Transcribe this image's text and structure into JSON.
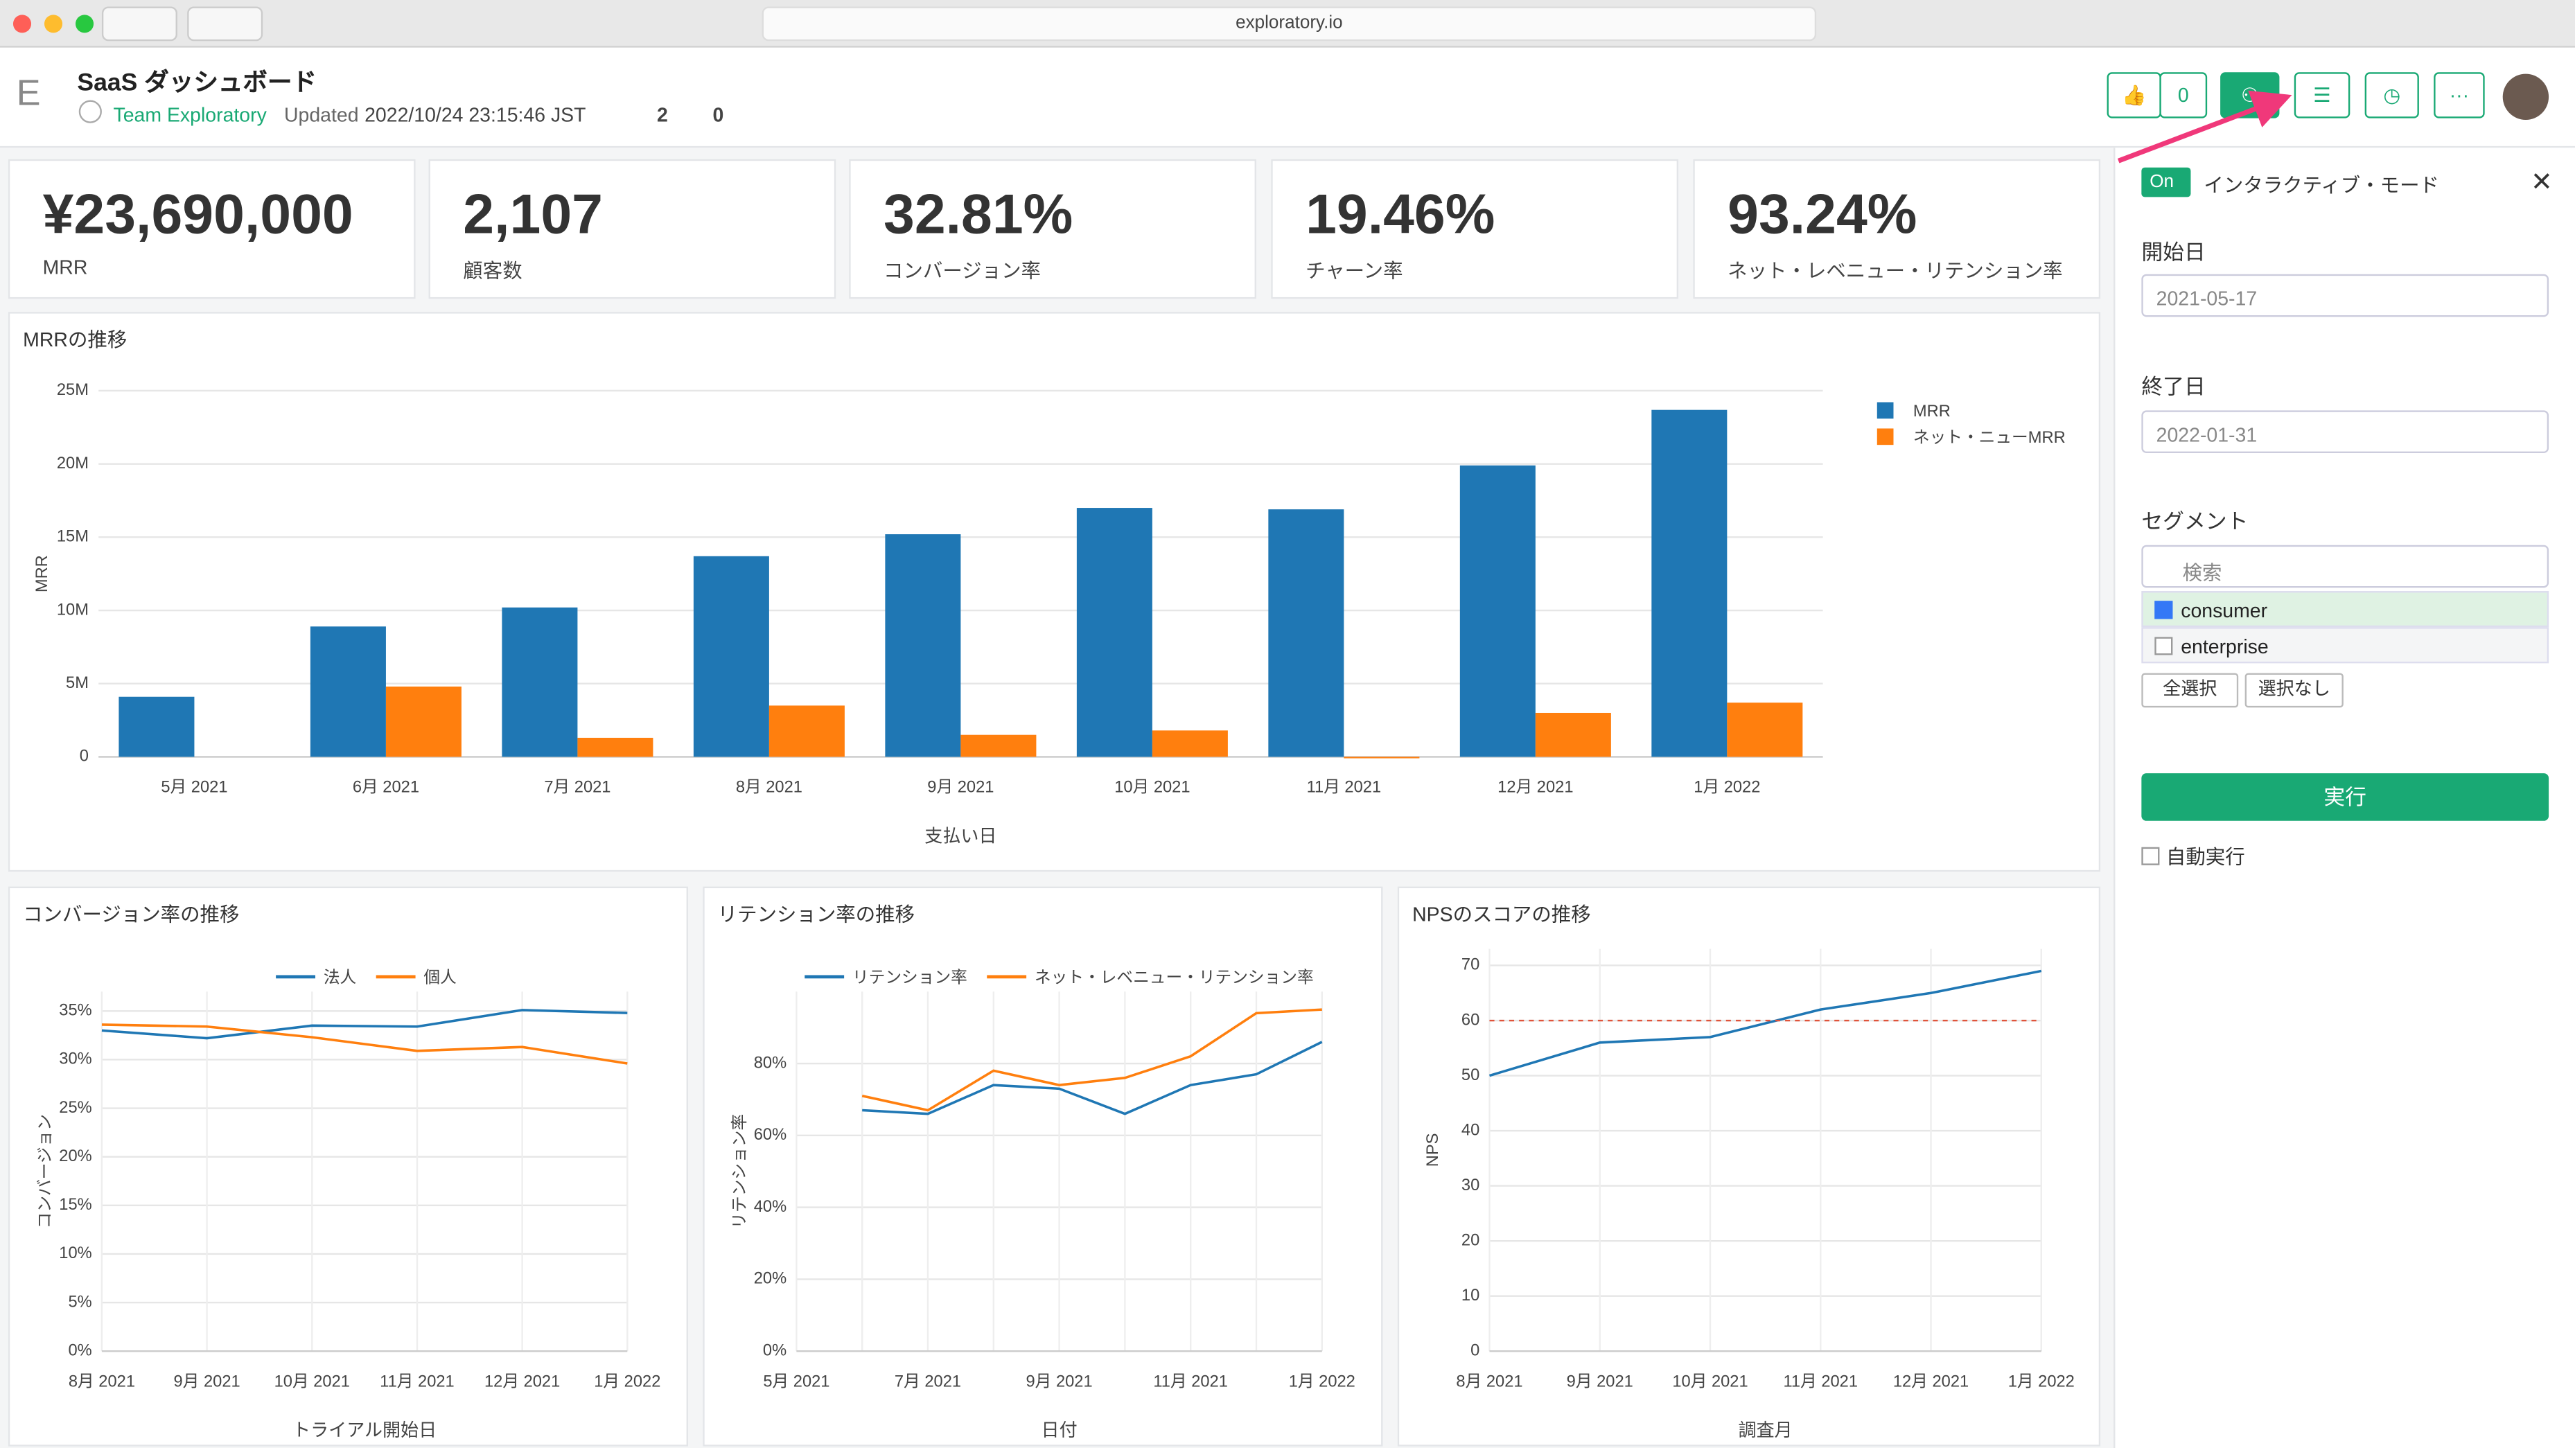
{
  "browser": {
    "url": "exploratory.io"
  },
  "header": {
    "logo": "E",
    "title": "SaaS ダッシュボード",
    "team": "Team Exploratory",
    "updated_label": "Updated",
    "updated": "2022/10/24 23:15:46 JST",
    "views": 2,
    "downloads": 0,
    "likes": 0
  },
  "kpis": [
    {
      "value": "¥23,690,000",
      "label": "MRR"
    },
    {
      "value": "2,107",
      "label": "顧客数"
    },
    {
      "value": "32.81%",
      "label": "コンバージョン率"
    },
    {
      "value": "19.46%",
      "label": "チャーン率"
    },
    {
      "value": "93.24%",
      "label": "ネット・レベニュー・リテンション率"
    }
  ],
  "panel": {
    "toggle": "On",
    "mode": "インタラクティブ・モード",
    "start_label": "開始日",
    "start": "2021-05-17",
    "end_label": "終了日",
    "end": "2022-01-31",
    "segment_label": "セグメント",
    "search": "検索",
    "options": [
      {
        "label": "consumer",
        "checked": true
      },
      {
        "label": "enterprise",
        "checked": false
      }
    ],
    "select_all": "全選択",
    "select_none": "選択なし",
    "run": "実行",
    "auto_run": "自動実行"
  },
  "chart_data": [
    {
      "type": "bar",
      "title": "MRRの推移",
      "xlabel": "支払い日",
      "ylabel": "MRR",
      "categories": [
        "5月 2021",
        "6月 2021",
        "7月 2021",
        "8月 2021",
        "9月 2021",
        "10月 2021",
        "11月 2021",
        "12月 2021",
        "1月 2022"
      ],
      "series": [
        {
          "name": "MRR",
          "color": "#1f77b4",
          "values": [
            4100000,
            8900000,
            10200000,
            13700000,
            15200000,
            17000000,
            16900000,
            19900000,
            23690000
          ]
        },
        {
          "name": "ネット・ニューMRR",
          "color": "#ff7f0e",
          "values": [
            null,
            4800000,
            1300000,
            3500000,
            1500000,
            1800000,
            -100000,
            3000000,
            3700000
          ]
        }
      ],
      "ylim": [
        0,
        25000000
      ],
      "yticks": [
        0,
        {
          "value": 5000000,
          "label": "5M"
        },
        {
          "value": 10000000,
          "label": "10M"
        },
        {
          "value": 15000000,
          "label": "15M"
        },
        {
          "value": 20000000,
          "label": "20M"
        },
        {
          "value": 25000000,
          "label": "25M"
        }
      ],
      "grid": true,
      "legend": "right"
    },
    {
      "type": "line",
      "title": "コンバージョン率の推移",
      "xlabel": "トライアル開始日",
      "ylabel": "コンバージョン",
      "categories": [
        "8月 2021",
        "9月 2021",
        "10月 2021",
        "11月 2021",
        "12月 2021",
        "1月 2022"
      ],
      "series": [
        {
          "name": "法人",
          "color": "#1f77b4",
          "values": [
            33,
            32.2,
            33.5,
            33.4,
            35.1,
            34.8
          ]
        },
        {
          "name": "個人",
          "color": "#ff7f0e",
          "values": [
            33.6,
            33.4,
            32.3,
            30.9,
            31.3,
            29.6
          ]
        }
      ],
      "ylim": [
        0,
        37
      ],
      "yticks": [
        {
          "value": 0,
          "label": "0%"
        },
        {
          "value": 5,
          "label": "5%"
        },
        {
          "value": 10,
          "label": "10%"
        },
        {
          "value": 15,
          "label": "15%"
        },
        {
          "value": 20,
          "label": "20%"
        },
        {
          "value": 25,
          "label": "25%"
        },
        {
          "value": 30,
          "label": "30%"
        },
        {
          "value": 35,
          "label": "35%"
        }
      ],
      "grid": true,
      "legend": "top"
    },
    {
      "type": "line",
      "title": "リテンション率の推移",
      "xlabel": "日付",
      "ylabel": "リテンション率",
      "categories": [
        "5月 2021",
        null,
        "7月 2021",
        null,
        "9月 2021",
        null,
        "11月 2021",
        null,
        "1月 2022"
      ],
      "series": [
        {
          "name": "リテンション率",
          "color": "#1f77b4",
          "values": [
            null,
            67,
            66,
            74,
            73,
            66,
            74,
            77,
            86
          ]
        },
        {
          "name": "ネット・レベニュー・リテンション率",
          "color": "#ff7f0e",
          "values": [
            null,
            71,
            67,
            78,
            74,
            76,
            82,
            94,
            95
          ]
        }
      ],
      "ylim": [
        0,
        100
      ],
      "yticks": [
        {
          "value": 0,
          "label": "0%"
        },
        {
          "value": 20,
          "label": "20%"
        },
        {
          "value": 40,
          "label": "40%"
        },
        {
          "value": 60,
          "label": "60%"
        },
        {
          "value": 80,
          "label": "80%"
        }
      ],
      "grid": true,
      "legend": "top"
    },
    {
      "type": "line",
      "title": "NPSのスコアの推移",
      "xlabel": "調査月",
      "ylabel": "NPS",
      "categories": [
        "8月 2021",
        "9月 2021",
        "10月 2021",
        "11月 2021",
        "12月 2021",
        "1月 2022"
      ],
      "series": [
        {
          "color": "#1f77b4",
          "values": [
            50,
            56,
            57,
            62,
            65,
            69
          ]
        }
      ],
      "reference_line": {
        "value": 60,
        "color": "#e0533a"
      },
      "ylim": [
        0,
        73
      ],
      "yticks": [
        0,
        10,
        20,
        30,
        40,
        50,
        60,
        70
      ],
      "grid": true
    }
  ]
}
